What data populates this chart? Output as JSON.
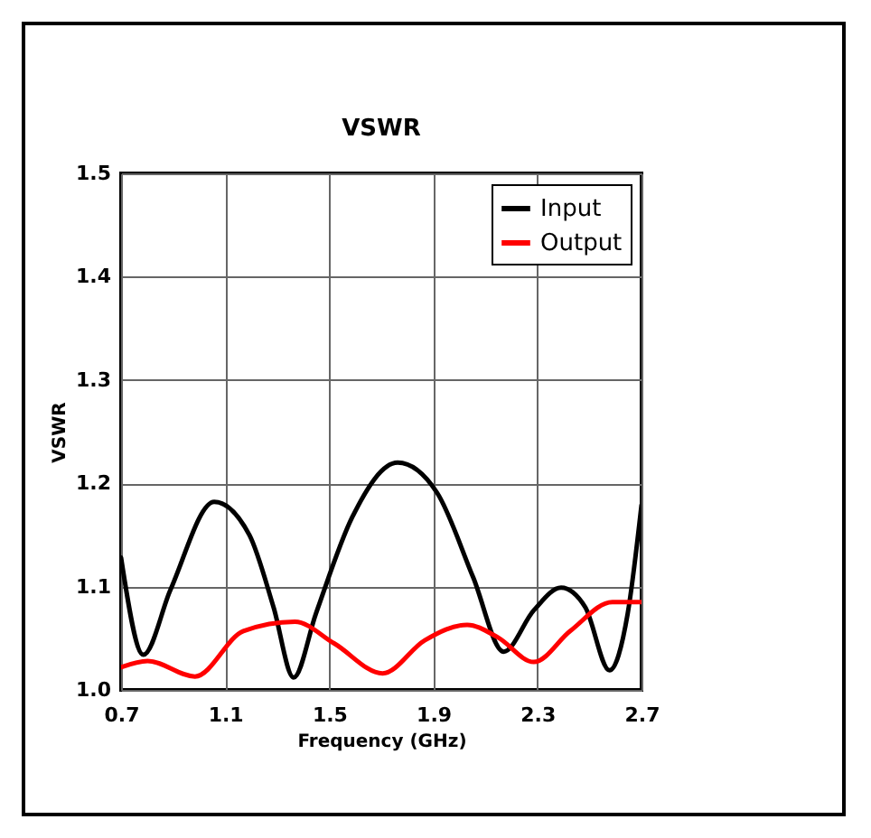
{
  "chart_data": {
    "type": "line",
    "title": "VSWR",
    "xlabel": "Frequency (GHz)",
    "ylabel": "VSWR",
    "xlim": [
      0.7,
      2.7
    ],
    "xticks": [
      0.7,
      1.1,
      1.5,
      1.9,
      2.3,
      2.7
    ],
    "ylim": [
      1.0,
      1.5
    ],
    "yticks": [
      {
        "value": 1.0,
        "label": "1.0"
      },
      1.1,
      1.2,
      1.3,
      1.4,
      1.5
    ],
    "grid": true,
    "legend": "top right",
    "marker": "none",
    "line_style": "solid",
    "series": [
      {
        "name": "Input",
        "color": "#000000",
        "x": [
          0.7,
          0.786,
          0.89,
          1.058,
          1.193,
          1.286,
          1.363,
          1.449,
          1.588,
          1.763,
          1.914,
          2.053,
          2.17,
          2.286,
          2.391,
          2.484,
          2.577,
          2.647,
          2.7
        ],
        "values": [
          1.128,
          1.034,
          1.097,
          1.182,
          1.15,
          1.08,
          1.012,
          1.074,
          1.167,
          1.22,
          1.191,
          1.109,
          1.037,
          1.077,
          1.099,
          1.08,
          1.019,
          1.074,
          1.179
        ]
      },
      {
        "name": "Output",
        "color": "#ff0000",
        "x": [
          0.7,
          0.802,
          0.984,
          1.17,
          1.368,
          1.519,
          1.705,
          1.867,
          2.03,
          2.147,
          2.286,
          2.426,
          2.588,
          2.7
        ],
        "values": [
          1.022,
          1.028,
          1.013,
          1.057,
          1.066,
          1.045,
          1.016,
          1.048,
          1.063,
          1.051,
          1.027,
          1.057,
          1.085,
          1.085
        ]
      }
    ]
  }
}
